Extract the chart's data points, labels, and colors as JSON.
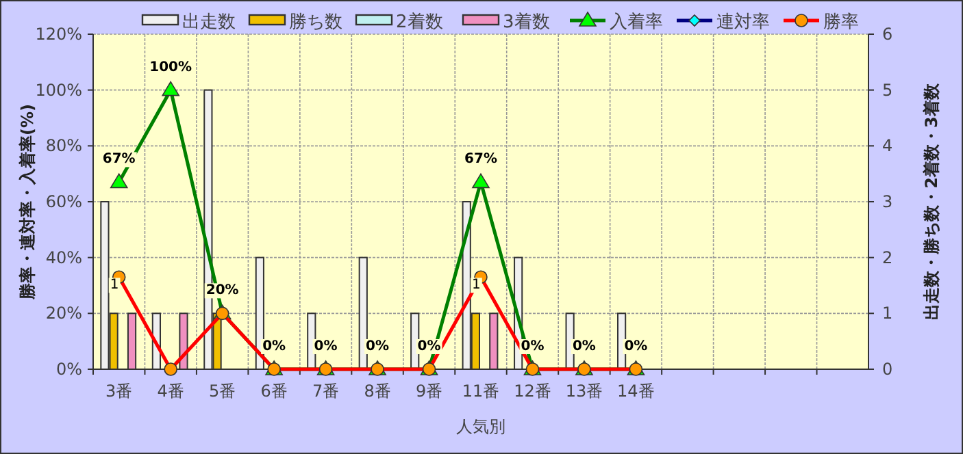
{
  "chart_data": {
    "type": "bar",
    "xlabel": "人気別",
    "ylabel": "勝率・連対率・入着率(%)",
    "y2label": "出走数・勝ち数・2着数・3着数",
    "categories": [
      "3番",
      "4番",
      "5番",
      "6番",
      "7番",
      "8番",
      "9番",
      "11番",
      "12番",
      "13番",
      "14番",
      null,
      null,
      null,
      null
    ],
    "series": [
      {
        "name": "出走数",
        "axis": "y2",
        "color": "#f0f0f0",
        "values": [
          3,
          1,
          5,
          2,
          1,
          2,
          1,
          3,
          2,
          1,
          1,
          null,
          null,
          null,
          null
        ]
      },
      {
        "name": "勝ち数",
        "axis": "y2",
        "color": "#f0c000",
        "values": [
          1,
          0,
          1,
          0,
          0,
          0,
          0,
          1,
          0,
          0,
          0,
          null,
          null,
          null,
          null
        ],
        "value_labels": [
          "1",
          null,
          null,
          null,
          null,
          null,
          null,
          "1",
          null,
          null,
          null,
          null,
          null,
          null,
          null
        ]
      },
      {
        "name": "2着数",
        "axis": "y2",
        "color": "#c0f0f0",
        "values": [
          0,
          0,
          0,
          0,
          0,
          0,
          0,
          0,
          0,
          0,
          0,
          null,
          null,
          null,
          null
        ]
      },
      {
        "name": "3着数",
        "axis": "y2",
        "color": "#f090c0",
        "values": [
          1,
          1,
          0,
          0,
          0,
          0,
          0,
          1,
          0,
          0,
          0,
          null,
          null,
          null,
          null
        ]
      },
      {
        "name": "入着率",
        "type": "line",
        "axis": "y",
        "color": "#008000",
        "marker": "triangle",
        "values": [
          67,
          100,
          20,
          0,
          0,
          0,
          0,
          67,
          0,
          0,
          0,
          null,
          null,
          null,
          null
        ],
        "value_labels": [
          "67%",
          "100%",
          "20%",
          "0%",
          "0%",
          "0%",
          "0%",
          "67%",
          "0%",
          "0%",
          "0%",
          null,
          null,
          null,
          null
        ]
      },
      {
        "name": "連対率",
        "type": "line",
        "axis": "y",
        "color": "#000080",
        "marker": "diamond",
        "values": [
          null,
          null,
          null,
          null,
          null,
          null,
          null,
          null,
          null,
          null,
          null,
          null,
          null,
          null,
          null
        ]
      },
      {
        "name": "勝率",
        "type": "line",
        "axis": "y",
        "color": "#ff0000",
        "marker": "circle",
        "values": [
          33,
          0,
          20,
          0,
          0,
          0,
          0,
          33,
          0,
          0,
          0,
          null,
          null,
          null,
          null
        ]
      }
    ],
    "ylim": [
      0,
      120
    ],
    "yticks": [
      {
        "value": 0,
        "label": "0%"
      },
      {
        "value": 20,
        "label": "20%"
      },
      {
        "value": 40,
        "label": "40%"
      },
      {
        "value": 60,
        "label": "60%"
      },
      {
        "value": 80,
        "label": "80%"
      },
      {
        "value": 100,
        "label": "100%"
      },
      {
        "value": 120,
        "label": "120%"
      }
    ],
    "y2lim": [
      0,
      6
    ],
    "y2ticks": [
      0,
      1,
      2,
      3,
      4,
      5,
      6
    ],
    "grid": true,
    "legend": "top"
  }
}
